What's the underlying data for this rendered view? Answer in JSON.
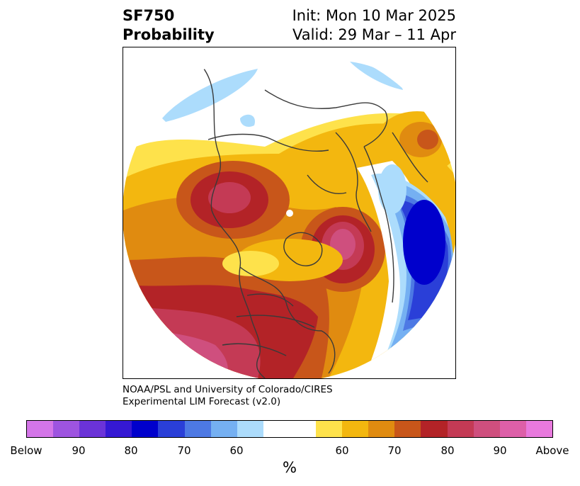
{
  "title": {
    "variable": "SF750",
    "subtitle": "Probability",
    "init": "Init: Mon 10 Mar 2025",
    "valid": "Valid: 29 Mar – 11 Apr"
  },
  "credit": {
    "line1": "NOAA/PSL and University of Colorado/CIRES",
    "line2": "Experimental LIM Forecast (v2.0)"
  },
  "colorbar": {
    "unit": "%",
    "colors": [
      "#d475e8",
      "#9e54e0",
      "#6b33d8",
      "#3518d4",
      "#0000cc",
      "#2a3fd8",
      "#4d79e4",
      "#75b0f2",
      "#acdcfc",
      "#ffffff",
      "#ffffff",
      "#fee24b",
      "#f3b70f",
      "#e08b10",
      "#c8561a",
      "#b32327",
      "#c43a55",
      "#cf4f7e",
      "#dd5fa8",
      "#e879dd"
    ],
    "tick_labels": [
      "Below",
      "90",
      "80",
      "70",
      "60",
      "60",
      "70",
      "80",
      "90",
      "Above"
    ],
    "legend_colors": {
      "below_strong": "#0000cc",
      "below_weak": "#acdcfc",
      "neutral": "#ffffff",
      "above_weak": "#fee24b",
      "above_strong": "#b32327"
    }
  }
}
